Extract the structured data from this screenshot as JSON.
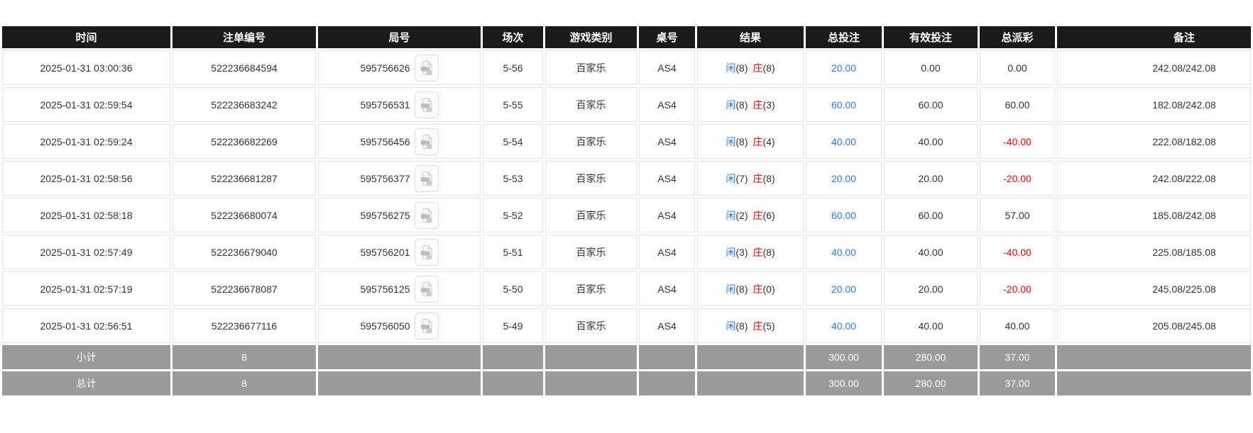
{
  "table": {
    "columns": [
      "时间",
      "注单编号",
      "局号",
      "场次",
      "游戏类别",
      "桌号",
      "结果",
      "总投注",
      "有效投注",
      "总派彩",
      "备注"
    ],
    "rows": [
      {
        "time": "2025-01-31 03:00:36",
        "bet_id": "522236684594",
        "round_no": "595756626",
        "session": "5-56",
        "game_type": "百家乐",
        "table_no": "AS4",
        "player_label": "闲",
        "player_points": "(8)",
        "banker_label": "庄",
        "banker_points": "(8)",
        "total_bet": "20.00",
        "valid_bet": "0.00",
        "payout": "0.00",
        "remark": "242.08/242.08"
      },
      {
        "time": "2025-01-31 02:59:54",
        "bet_id": "522236683242",
        "round_no": "595756531",
        "session": "5-55",
        "game_type": "百家乐",
        "table_no": "AS4",
        "player_label": "闲",
        "player_points": "(8)",
        "banker_label": "庄",
        "banker_points": "(3)",
        "total_bet": "60.00",
        "valid_bet": "60.00",
        "payout": "60.00",
        "remark": "182.08/242.08"
      },
      {
        "time": "2025-01-31 02:59:24",
        "bet_id": "522236682269",
        "round_no": "595756456",
        "session": "5-54",
        "game_type": "百家乐",
        "table_no": "AS4",
        "player_label": "闲",
        "player_points": "(8)",
        "banker_label": "庄",
        "banker_points": "(4)",
        "total_bet": "40.00",
        "valid_bet": "40.00",
        "payout": "-40.00",
        "remark": "222.08/182.08"
      },
      {
        "time": "2025-01-31 02:58:56",
        "bet_id": "522236681287",
        "round_no": "595756377",
        "session": "5-53",
        "game_type": "百家乐",
        "table_no": "AS4",
        "player_label": "闲",
        "player_points": "(7)",
        "banker_label": "庄",
        "banker_points": "(8)",
        "total_bet": "20.00",
        "valid_bet": "20.00",
        "payout": "-20.00",
        "remark": "242.08/222.08"
      },
      {
        "time": "2025-01-31 02:58:18",
        "bet_id": "522236680074",
        "round_no": "595756275",
        "session": "5-52",
        "game_type": "百家乐",
        "table_no": "AS4",
        "player_label": "闲",
        "player_points": "(2)",
        "banker_label": "庄",
        "banker_points": "(6)",
        "total_bet": "60.00",
        "valid_bet": "60.00",
        "payout": "57.00",
        "remark": "185.08/242.08"
      },
      {
        "time": "2025-01-31 02:57:49",
        "bet_id": "522236679040",
        "round_no": "595756201",
        "session": "5-51",
        "game_type": "百家乐",
        "table_no": "AS4",
        "player_label": "闲",
        "player_points": "(3)",
        "banker_label": "庄",
        "banker_points": "(8)",
        "total_bet": "40.00",
        "valid_bet": "40.00",
        "payout": "-40.00",
        "remark": "225.08/185.08"
      },
      {
        "time": "2025-01-31 02:57:19",
        "bet_id": "522236678087",
        "round_no": "595756125",
        "session": "5-50",
        "game_type": "百家乐",
        "table_no": "AS4",
        "player_label": "闲",
        "player_points": "(8)",
        "banker_label": "庄",
        "banker_points": "(0)",
        "total_bet": "20.00",
        "valid_bet": "20.00",
        "payout": "-20.00",
        "remark": "245.08/225.08"
      },
      {
        "time": "2025-01-31 02:56:51",
        "bet_id": "522236677116",
        "round_no": "595756050",
        "session": "5-49",
        "game_type": "百家乐",
        "table_no": "AS4",
        "player_label": "闲",
        "player_points": "(8)",
        "banker_label": "庄",
        "banker_points": "(5)",
        "total_bet": "40.00",
        "valid_bet": "40.00",
        "payout": "40.00",
        "remark": "205.08/245.08"
      }
    ],
    "summary_rows": [
      {
        "label": "小计",
        "bet_count": "8",
        "total_bet": "300.00",
        "valid_bet": "280.00",
        "payout": "37.00"
      },
      {
        "label": "总计",
        "bet_count": "8",
        "total_bet": "300.00",
        "valid_bet": "280.00",
        "payout": "37.00"
      }
    ]
  },
  "icons": {
    "round_video": "video-file-icon"
  },
  "colors": {
    "header_bg": "#1a1a1a",
    "summary_bg": "#9b9b9b",
    "player_blue": "#2979ff",
    "banker_red": "#ff0000",
    "bet_amount_blue": "#2979ff",
    "negative_red": "#ff0000",
    "row_border": "#e4e4e4",
    "text": "#333333"
  }
}
